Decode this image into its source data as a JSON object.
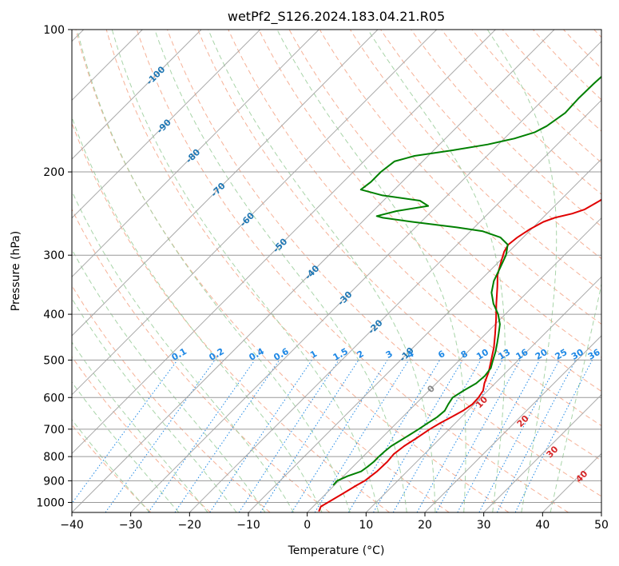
{
  "chart_data": {
    "type": "line",
    "subtype": "skew-T log-P diagram",
    "title": "wetPf2_S126.2024.183.04.21.R05",
    "xlabel": "Temperature (°C)",
    "ylabel": "Pressure (hPa)",
    "xlim": [
      -40,
      50
    ],
    "ylim_hpa": [
      1050,
      100
    ],
    "y_scale": "log",
    "x_ticks": [
      -40,
      -30,
      -20,
      -10,
      0,
      10,
      20,
      30,
      40,
      50
    ],
    "y_ticks": [
      100,
      200,
      300,
      400,
      500,
      600,
      700,
      800,
      900,
      1000
    ],
    "x_tick_labels": [
      "−40",
      "−30",
      "−20",
      "−10",
      "0",
      "10",
      "20",
      "30",
      "40",
      "50"
    ],
    "y_tick_labels": [
      "100",
      "200",
      "300",
      "400",
      "500",
      "600",
      "700",
      "800",
      "900",
      "1000"
    ],
    "grid": true,
    "colors": {
      "temperature": "#e00000",
      "dewpoint": "#008000",
      "isotherm": "#aaaaaa",
      "isobar": "#999999",
      "dry_adiabat": "#f5a385",
      "moist_adiabat": "#9fcf9f",
      "mixing_ratio": "#1e88e5",
      "isotherm_label": "#1f77b4",
      "dry_adiabat_label": "#d62728",
      "zero_label": "#888888"
    },
    "series": [
      {
        "role": "temperature",
        "points": [
          [
            1045,
            1.8
          ],
          [
            1020,
            1.3
          ],
          [
            1000,
            1.8
          ],
          [
            960,
            2.8
          ],
          [
            920,
            3.8
          ],
          [
            900,
            4.4
          ],
          [
            860,
            4.9
          ],
          [
            820,
            5.0
          ],
          [
            790,
            4.8
          ],
          [
            760,
            5.2
          ],
          [
            730,
            6.0
          ],
          [
            700,
            6.7
          ],
          [
            680,
            7.4
          ],
          [
            660,
            8.3
          ],
          [
            640,
            9.2
          ],
          [
            620,
            9.7
          ],
          [
            600,
            9.6
          ],
          [
            580,
            9.2
          ],
          [
            560,
            8.2
          ],
          [
            530,
            7.0
          ],
          [
            500,
            5.4
          ],
          [
            470,
            3.7
          ],
          [
            440,
            1.6
          ],
          [
            410,
            -0.7
          ],
          [
            380,
            -3.3
          ],
          [
            350,
            -6.0
          ],
          [
            330,
            -8.0
          ],
          [
            310,
            -9.6
          ],
          [
            295,
            -10.8
          ],
          [
            285,
            -11.3
          ],
          [
            275,
            -11.0
          ],
          [
            265,
            -10.3
          ],
          [
            255,
            -9.2
          ],
          [
            250,
            -8.0
          ],
          [
            245,
            -5.7
          ],
          [
            240,
            -4.3
          ],
          [
            230,
            -3.2
          ],
          [
            220,
            -2.5
          ],
          [
            210,
            -2.2
          ],
          [
            200,
            -2.0
          ],
          [
            190,
            -2.7
          ],
          [
            180,
            -4.2
          ],
          [
            170,
            -5.8
          ],
          [
            160,
            -7.3
          ],
          [
            150,
            -8.6
          ],
          [
            140,
            -9.8
          ],
          [
            130,
            -11.0
          ],
          [
            120,
            -12.2
          ],
          [
            110,
            -13.3
          ],
          [
            100,
            -14.5
          ]
        ]
      },
      {
        "role": "dewpoint",
        "points": [
          [
            920,
            -0.2
          ],
          [
            900,
            -0.3
          ],
          [
            880,
            0.7
          ],
          [
            860,
            2.2
          ],
          [
            840,
            2.5
          ],
          [
            820,
            2.7
          ],
          [
            800,
            2.7
          ],
          [
            780,
            2.8
          ],
          [
            760,
            3.0
          ],
          [
            740,
            3.6
          ],
          [
            720,
            4.2
          ],
          [
            700,
            4.8
          ],
          [
            680,
            5.3
          ],
          [
            660,
            5.9
          ],
          [
            640,
            6.1
          ],
          [
            620,
            5.6
          ],
          [
            600,
            5.2
          ],
          [
            580,
            5.9
          ],
          [
            560,
            6.8
          ],
          [
            540,
            7.0
          ],
          [
            520,
            6.7
          ],
          [
            500,
            5.7
          ],
          [
            480,
            4.7
          ],
          [
            460,
            3.5
          ],
          [
            440,
            2.2
          ],
          [
            420,
            0.8
          ],
          [
            400,
            -1.2
          ],
          [
            380,
            -3.8
          ],
          [
            360,
            -6.0
          ],
          [
            340,
            -7.6
          ],
          [
            320,
            -8.7
          ],
          [
            300,
            -9.9
          ],
          [
            285,
            -11.4
          ],
          [
            275,
            -13.9
          ],
          [
            267,
            -17.9
          ],
          [
            262,
            -23.0
          ],
          [
            255,
            -31.5
          ],
          [
            250,
            -37.2
          ],
          [
            248,
            -38.5
          ],
          [
            242,
            -36.0
          ],
          [
            236,
            -31.5
          ],
          [
            230,
            -33.8
          ],
          [
            224,
            -41.2
          ],
          [
            218,
            -45.7
          ],
          [
            210,
            -45.3
          ],
          [
            200,
            -45.3
          ],
          [
            190,
            -44.8
          ],
          [
            185,
            -42.3
          ],
          [
            180,
            -36.8
          ],
          [
            175,
            -31.8
          ],
          [
            170,
            -28.3
          ],
          [
            165,
            -25.9
          ],
          [
            160,
            -24.9
          ],
          [
            150,
            -24.0
          ],
          [
            140,
            -24.2
          ],
          [
            130,
            -24.1
          ],
          [
            120,
            -23.8
          ],
          [
            110,
            -23.1
          ],
          [
            100,
            -21.8
          ]
        ]
      }
    ],
    "isotherm_labels": [
      "-100",
      "-90",
      "-80",
      "-70",
      "-60",
      "-50",
      "-40",
      "-30",
      "-20",
      "-10",
      "0"
    ],
    "dry_adiabat_labels": [
      "10",
      "20",
      "30",
      "40"
    ],
    "mixing_ratio_labels": [
      "0.1",
      "0.2",
      "0.4",
      "0.6",
      "1",
      "1.5",
      "2",
      "3",
      "4",
      "6",
      "8",
      "10",
      "13",
      "16",
      "20",
      "25",
      "30",
      "36"
    ]
  }
}
